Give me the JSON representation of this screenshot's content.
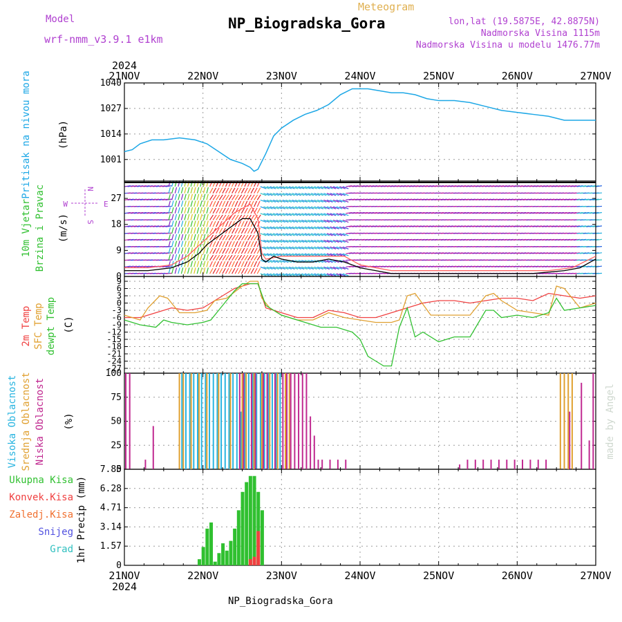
{
  "header": {
    "model_label": "Model",
    "model_name": "wrf-nmm_v3.9.1 e1km",
    "title": "NP_Biogradska_Gora",
    "subtitle": "Meteogram",
    "lonlat": "lon,lat (19.5875E, 42.8875N)",
    "altitude": "Nadmorska Visina 1115m",
    "model_altitude": "Nadmorska Visina u modelu 1476.77m",
    "footer_title": "NP_Biogradska_Gora",
    "watermark": "made by Angel"
  },
  "time_axis": {
    "year": "2024",
    "ticks": [
      "21NOV",
      "22NOV",
      "23NOV",
      "24NOV",
      "25NOV",
      "26NOV",
      "27NOV"
    ]
  },
  "panel_labels": {
    "pressure": {
      "lines": [
        "Pritisak na nivou mora"
      ],
      "unit": "(hPa)"
    },
    "wind": {
      "lines": [
        "10m Vjetar",
        "Brzina i Pravac"
      ],
      "unit": "(m/s)",
      "compass": {
        "n": "N",
        "s": "S",
        "e": "E",
        "w": "W"
      }
    },
    "temp": {
      "lines": [
        "2m Temp",
        "SFC Temp",
        "dewpt Temp"
      ],
      "unit": "(C)"
    },
    "cloud": {
      "lines": [
        "Visoka Oblacnost",
        "Srednja Oblacnost",
        "Niska Oblacnost"
      ],
      "unit": "(%)"
    },
    "precip": {
      "lines": [
        "Ukupna Kisa",
        "Konvek.Kisa",
        "Zaledj.Kisa",
        "Snijeg",
        "Grad"
      ],
      "unit": "1hr Precip (mm)"
    }
  },
  "colors": {
    "pressure": "#1ca7e6",
    "wind_speed": "#000000",
    "gust": "#ff5a5a",
    "t2m": "#f04040",
    "sfc": "#e0a030",
    "dewpt": "#30c030",
    "cloud_high": "#28b4e0",
    "cloud_mid": "#e0a030",
    "cloud_low": "#c02890",
    "rain_total": "#30c030",
    "rain_conv": "#f04040",
    "rain_frz": "#f07030",
    "snow": "#5050e0",
    "hail": "#30c0c0",
    "label_purple": "#b040d0",
    "label_orange": "#e0b050"
  },
  "chart_data": [
    {
      "type": "line",
      "name": "pressure",
      "x_unit": "days since 21NOV 00Z",
      "xlim": [
        0,
        6
      ],
      "ylim": [
        990,
        1040
      ],
      "yticks": [
        1001,
        1014,
        1027,
        1040
      ],
      "series": [
        {
          "name": "Pritisak na nivou mora",
          "x": [
            0,
            0.1,
            0.2,
            0.35,
            0.5,
            0.7,
            0.9,
            1.05,
            1.2,
            1.35,
            1.5,
            1.6,
            1.65,
            1.7,
            1.8,
            1.9,
            2.0,
            2.15,
            2.3,
            2.45,
            2.6,
            2.75,
            2.9,
            3.0,
            3.1,
            3.25,
            3.4,
            3.55,
            3.7,
            3.85,
            4.0,
            4.2,
            4.4,
            4.6,
            4.8,
            5.0,
            5.2,
            5.4,
            5.6,
            5.8,
            6.0
          ],
          "y": [
            1005,
            1006,
            1009,
            1011,
            1011,
            1012,
            1011,
            1009,
            1005,
            1001,
            999,
            997,
            995,
            996,
            1004,
            1013,
            1017,
            1021,
            1024,
            1026,
            1029,
            1034,
            1037,
            1037,
            1037,
            1036,
            1035,
            1035,
            1034,
            1032,
            1031,
            1031,
            1030,
            1028,
            1026,
            1025,
            1024,
            1023,
            1021,
            1021,
            1021
          ]
        }
      ]
    },
    {
      "type": "line",
      "name": "wind",
      "x_unit": "days since 21NOV 00Z",
      "xlim": [
        0,
        6
      ],
      "ylim": [
        0,
        33
      ],
      "yticks": [
        0,
        9,
        18,
        27
      ],
      "series": [
        {
          "name": "speed",
          "x": [
            0,
            0.3,
            0.6,
            0.8,
            0.95,
            1.05,
            1.15,
            1.25,
            1.35,
            1.45,
            1.5,
            1.6,
            1.7,
            1.75,
            1.8,
            1.9,
            2.0,
            2.2,
            2.4,
            2.6,
            2.8,
            3.0,
            3.2,
            3.4,
            3.6,
            3.8,
            4.0,
            4.4,
            4.8,
            5.2,
            5.6,
            5.8,
            6.0
          ],
          "y": [
            2,
            2,
            3,
            5,
            8,
            11,
            13,
            15,
            17,
            19,
            20,
            20,
            15,
            6,
            5,
            7,
            6,
            5,
            5,
            6,
            5,
            3,
            2,
            1,
            1,
            1,
            1,
            1,
            1,
            1,
            2,
            3,
            6
          ]
        },
        {
          "name": "gust",
          "x": [
            0,
            0.3,
            0.6,
            0.8,
            1.0,
            1.2,
            1.4,
            1.6,
            1.7,
            1.75,
            1.8,
            2.0,
            2.4,
            2.8,
            3.0,
            3.4,
            4.0,
            4.8,
            5.4,
            5.7,
            5.85,
            6.0
          ],
          "y": [
            3,
            3,
            4,
            7,
            12,
            17,
            22,
            25,
            20,
            8,
            6,
            7,
            7,
            7,
            4,
            2,
            2,
            2,
            2,
            3,
            5,
            7
          ]
        }
      ]
    },
    {
      "type": "line",
      "name": "temperature",
      "x_unit": "days since 21NOV 00Z",
      "xlim": [
        0,
        6
      ],
      "ylim": [
        -29,
        11
      ],
      "yticks": [
        9,
        6,
        3,
        0,
        -3,
        -6,
        -9,
        -12,
        -15,
        -18,
        -21,
        -24,
        -27
      ],
      "series": [
        {
          "name": "2m Temp",
          "x": [
            0,
            0.2,
            0.4,
            0.6,
            0.8,
            1.0,
            1.2,
            1.4,
            1.6,
            1.7,
            1.8,
            2.0,
            2.2,
            2.4,
            2.6,
            2.8,
            3.0,
            3.2,
            3.4,
            3.6,
            3.8,
            4.0,
            4.2,
            4.4,
            4.6,
            4.8,
            5.0,
            5.2,
            5.4,
            5.6,
            5.8,
            6.0
          ],
          "y": [
            -6,
            -6,
            -4,
            -2,
            -3,
            -2,
            2,
            6,
            8,
            8,
            -2,
            -4,
            -6,
            -6,
            -3,
            -4,
            -6,
            -6,
            -4,
            -2,
            0,
            1,
            1,
            0,
            1,
            2,
            2,
            1,
            4,
            3,
            2,
            3
          ]
        },
        {
          "name": "SFC Temp",
          "x": [
            0,
            0.2,
            0.3,
            0.45,
            0.55,
            0.7,
            0.9,
            1.05,
            1.15,
            1.3,
            1.5,
            1.6,
            1.7,
            1.75,
            1.85,
            2.0,
            2.2,
            2.4,
            2.6,
            2.8,
            3.0,
            3.2,
            3.4,
            3.5,
            3.6,
            3.7,
            3.9,
            4.0,
            4.2,
            4.4,
            4.6,
            4.7,
            4.8,
            5.0,
            5.2,
            5.4,
            5.5,
            5.6,
            5.7,
            5.8,
            6.0
          ],
          "y": [
            -5,
            -7,
            -2,
            3,
            2,
            -4,
            -4,
            -3,
            1,
            2,
            7,
            9,
            9,
            2,
            -2,
            -5,
            -7,
            -7,
            -4,
            -6,
            -7,
            -8,
            -8,
            -7,
            3,
            4,
            -5,
            -5,
            -5,
            -5,
            3,
            4,
            1,
            -3,
            -4,
            -5,
            7,
            6,
            2,
            -2,
            0
          ]
        },
        {
          "name": "dewpt Temp",
          "x": [
            0,
            0.2,
            0.4,
            0.5,
            0.6,
            0.8,
            1.0,
            1.1,
            1.2,
            1.4,
            1.5,
            1.6,
            1.7,
            1.8,
            2.0,
            2.3,
            2.5,
            2.7,
            2.9,
            3.0,
            3.1,
            3.2,
            3.3,
            3.4,
            3.5,
            3.6,
            3.7,
            3.8,
            4.0,
            4.2,
            4.4,
            4.6,
            4.7,
            4.8,
            5.0,
            5.2,
            5.4,
            5.5,
            5.6,
            5.8,
            6.0
          ],
          "y": [
            -7,
            -9,
            -10,
            -7,
            -8,
            -9,
            -8,
            -7,
            -3,
            5,
            8,
            8,
            8,
            -1,
            -5,
            -8,
            -10,
            -10,
            -12,
            -15,
            -22,
            -24,
            -26,
            -26,
            -10,
            -2,
            -14,
            -12,
            -16,
            -14,
            -14,
            -3,
            -3,
            -6,
            -5,
            -6,
            -4,
            2,
            -3,
            -2,
            -1
          ]
        }
      ]
    },
    {
      "type": "bar",
      "name": "cloud",
      "x_unit": "days since 21NOV 00Z",
      "xlim": [
        0,
        6
      ],
      "ylim": [
        0,
        100
      ],
      "yticks": [
        0,
        25,
        50,
        75,
        100
      ],
      "series": [
        {
          "name": "Visoka Oblacnost",
          "x": [
            0.75,
            0.8,
            0.85,
            0.9,
            0.95,
            1.0,
            1.05,
            1.1,
            1.15,
            1.2,
            1.25,
            1.3,
            1.35,
            1.4,
            1.45,
            1.5,
            1.55,
            1.6,
            1.65,
            1.7,
            1.75,
            1.8,
            1.85,
            1.9,
            1.95,
            2.0
          ],
          "y": [
            100,
            100,
            100,
            100,
            100,
            100,
            100,
            100,
            100,
            100,
            100,
            100,
            100,
            100,
            100,
            60,
            100,
            100,
            100,
            100,
            100,
            100,
            100,
            100,
            100,
            100
          ]
        },
        {
          "name": "Srednja Oblacnost",
          "x": [
            0.7,
            0.75,
            0.85,
            0.95,
            1.05,
            1.2,
            1.35,
            1.5,
            1.55,
            1.65,
            1.75,
            1.85,
            1.95,
            2.05,
            2.1,
            5.55,
            5.6,
            5.65,
            5.7
          ],
          "y": [
            100,
            100,
            100,
            100,
            100,
            100,
            100,
            100,
            100,
            100,
            100,
            100,
            100,
            100,
            100,
            100,
            100,
            100,
            100
          ]
        },
        {
          "name": "Niska Oblacnost",
          "x": [
            0.0,
            0.05,
            0.25,
            0.35,
            1.45,
            1.5,
            1.6,
            1.65,
            1.75,
            1.8,
            1.9,
            2.0,
            2.05,
            2.1,
            2.15,
            2.2,
            2.25,
            2.3,
            2.35,
            2.4,
            2.45,
            2.5,
            2.6,
            2.7,
            2.8,
            4.25,
            4.35,
            4.45,
            4.55,
            4.65,
            4.75,
            4.85,
            4.95,
            5.05,
            5.15,
            5.25,
            5.35,
            5.65,
            5.8,
            5.9,
            5.95
          ],
          "y": [
            100,
            100,
            10,
            45,
            100,
            100,
            100,
            100,
            100,
            100,
            100,
            100,
            100,
            100,
            100,
            100,
            100,
            100,
            55,
            35,
            10,
            10,
            10,
            10,
            10,
            5,
            10,
            10,
            10,
            10,
            10,
            10,
            10,
            10,
            10,
            10,
            10,
            60,
            90,
            30,
            100
          ]
        }
      ]
    },
    {
      "type": "bar",
      "name": "precipitation",
      "x_unit": "days since 21NOV 00Z",
      "xlim": [
        0,
        6
      ],
      "ylim": [
        0,
        7.85
      ],
      "yticks": [
        0,
        1.57,
        3.14,
        4.71,
        6.28,
        7.85
      ],
      "series": [
        {
          "name": "Ukupna Kisa",
          "x": [
            0.95,
            1.0,
            1.05,
            1.1,
            1.15,
            1.2,
            1.25,
            1.3,
            1.35,
            1.4,
            1.45,
            1.5,
            1.55,
            1.6,
            1.65,
            1.7,
            1.75
          ],
          "y": [
            0.5,
            1.5,
            3.0,
            3.5,
            0.3,
            1.0,
            1.8,
            1.2,
            2.0,
            3.0,
            4.5,
            6.0,
            6.8,
            7.3,
            7.3,
            6.0,
            4.5
          ]
        },
        {
          "name": "Konvek.Kisa",
          "x": [
            1.6,
            1.65,
            1.7
          ],
          "y": [
            0.5,
            0.7,
            2.8
          ]
        }
      ]
    }
  ]
}
